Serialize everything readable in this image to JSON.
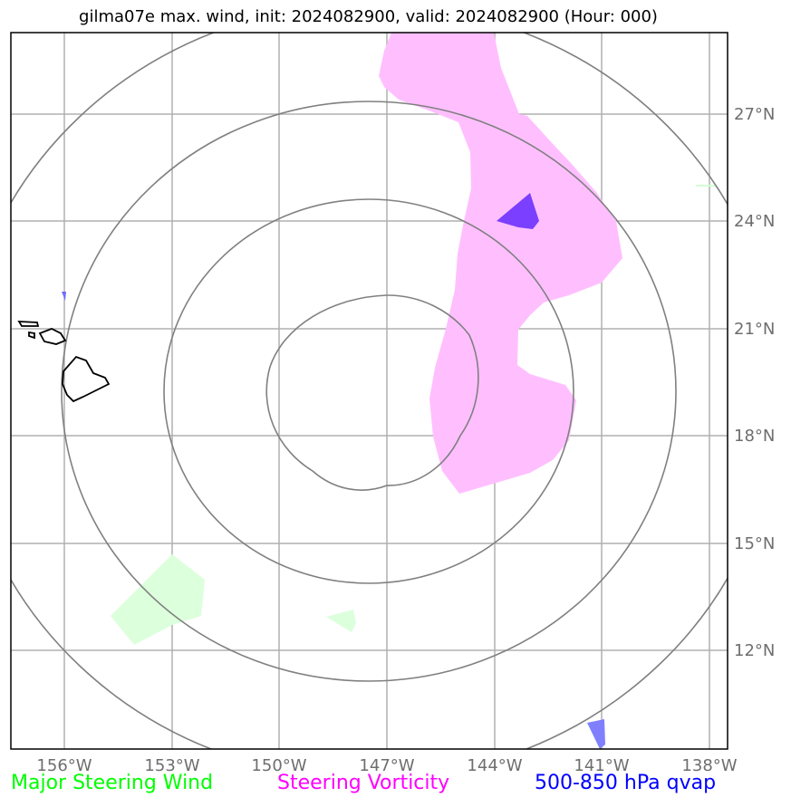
{
  "title": "gilma07e max. wind, init: 2024082900, valid: 2024082900 (Hour: 000)",
  "map": {
    "x_ticks": [
      "156°W",
      "153°W",
      "150°W",
      "147°W",
      "144°W",
      "141°W",
      "138°W"
    ],
    "y_ticks": [
      "27°N",
      "24°N",
      "21°N",
      "18°N",
      "15°N",
      "12°N"
    ],
    "range_rings": 4,
    "layers": [
      {
        "name": "Major Steering Wind",
        "color": "#00ff00"
      },
      {
        "name": "Steering Vorticity",
        "color": "#ff00ff"
      },
      {
        "name": "500-850 hPa qvap",
        "color": "#0000ff"
      }
    ]
  },
  "legend": {
    "wind": "Major Steering Wind",
    "vorticity": "Steering Vorticity",
    "qvap": "500-850 hPa qvap",
    "wind_color": "#00ff00",
    "vorticity_color": "#ff00ff",
    "qvap_color": "#0000ff"
  }
}
